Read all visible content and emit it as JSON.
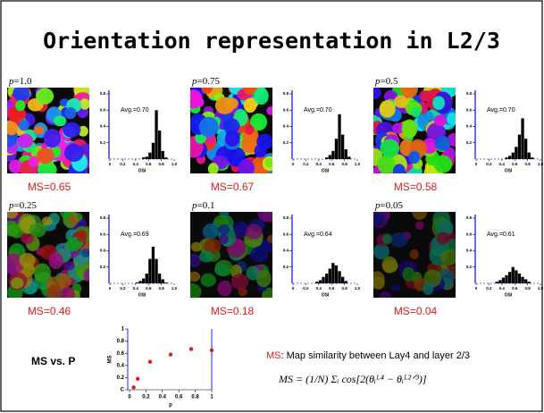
{
  "title": "Orientation representation in L2/3",
  "histogram_axes": {
    "bins": [
      0,
      0.05,
      0.1,
      0.15,
      0.2,
      0.25,
      0.3,
      0.35,
      0.4,
      0.45,
      0.5,
      0.55,
      0.6,
      0.65,
      0.7,
      0.75,
      0.8,
      0.85,
      0.9,
      0.95,
      1.0
    ],
    "xlim": [
      0,
      1
    ],
    "ylim": [
      0,
      0.8
    ],
    "xticks": [
      0,
      0.2,
      0.4,
      0.6,
      0.8,
      {
        "value": 1,
        "label": "1.0"
      }
    ],
    "yticks": [
      0.2,
      0.4,
      0.6,
      0.8
    ],
    "xlabel": "OSI",
    "color": "#000000"
  },
  "panels": [
    {
      "symbol": "p",
      "value": "=1.0",
      "avg": "Avg.=0.70",
      "ms": "MS=0.65",
      "counts": [
        0,
        0,
        0,
        0,
        0,
        0,
        0,
        0,
        0,
        0,
        0.02,
        0.03,
        0.08,
        0.2,
        0.6,
        0.35,
        0.1,
        0.02,
        0,
        0
      ]
    },
    {
      "symbol": "p",
      "value": "=0.75",
      "avg": "Avg.=0.70",
      "ms": "MS=0.67",
      "counts": [
        0,
        0,
        0,
        0,
        0,
        0,
        0,
        0,
        0,
        0,
        0.02,
        0.05,
        0.1,
        0.25,
        0.55,
        0.3,
        0.12,
        0.03,
        0,
        0
      ]
    },
    {
      "symbol": "p",
      "value": "=0.5",
      "avg": "Avg.=0.70",
      "ms": "MS=0.58",
      "counts": [
        0,
        0,
        0,
        0,
        0,
        0,
        0,
        0,
        0,
        0.02,
        0.04,
        0.08,
        0.15,
        0.3,
        0.5,
        0.25,
        0.08,
        0.02,
        0,
        0
      ]
    },
    {
      "symbol": "p",
      "value": "=0.25",
      "avg": "Avg.=0.69",
      "ms": "MS=0.46",
      "counts": [
        0,
        0,
        0,
        0,
        0,
        0,
        0,
        0,
        0.01,
        0.03,
        0.06,
        0.12,
        0.3,
        0.45,
        0.3,
        0.12,
        0.05,
        0.01,
        0,
        0
      ]
    },
    {
      "symbol": "p",
      "value": "=0.1",
      "avg": "Avg.=0.64",
      "ms": "MS=0.18",
      "counts": [
        0,
        0,
        0,
        0,
        0,
        0,
        0,
        0.02,
        0.04,
        0.08,
        0.12,
        0.18,
        0.25,
        0.22,
        0.15,
        0.08,
        0.03,
        0,
        0,
        0
      ]
    },
    {
      "symbol": "p",
      "value": "=0.05",
      "avg": "Avg.=0.61",
      "ms": "MS=0.04",
      "counts": [
        0,
        0,
        0,
        0,
        0,
        0,
        0.02,
        0.04,
        0.07,
        0.1,
        0.14,
        0.2,
        0.16,
        0.12,
        0.08,
        0.05,
        0.02,
        0,
        0,
        0
      ]
    }
  ],
  "summary": {
    "label": "MS vs. P",
    "chart_data": {
      "type": "scatter",
      "x": [
        0.05,
        0.1,
        0.25,
        0.5,
        0.75,
        1.0
      ],
      "values": [
        0.04,
        0.18,
        0.46,
        0.58,
        0.67,
        0.65
      ],
      "color": "#e31a1c",
      "xlim": [
        0,
        1
      ],
      "ylim": [
        0,
        1
      ],
      "xticks": [
        0,
        0.2,
        0.4,
        0.6,
        0.8,
        1
      ],
      "yticks": [
        {
          "value": 0,
          "label": "C"
        },
        0.2,
        0.4,
        0.6,
        0.8,
        1
      ],
      "xlabel": "p",
      "ylabel": "MS"
    }
  },
  "definition": {
    "term": "MS",
    "text": ": Map similarity between Lay4 and layer 2/3",
    "formula": "MS = (1/N) Σᵢ cos[2(θᵢᴸ⁴ − θᵢᴸ²ᐟ³)]"
  }
}
